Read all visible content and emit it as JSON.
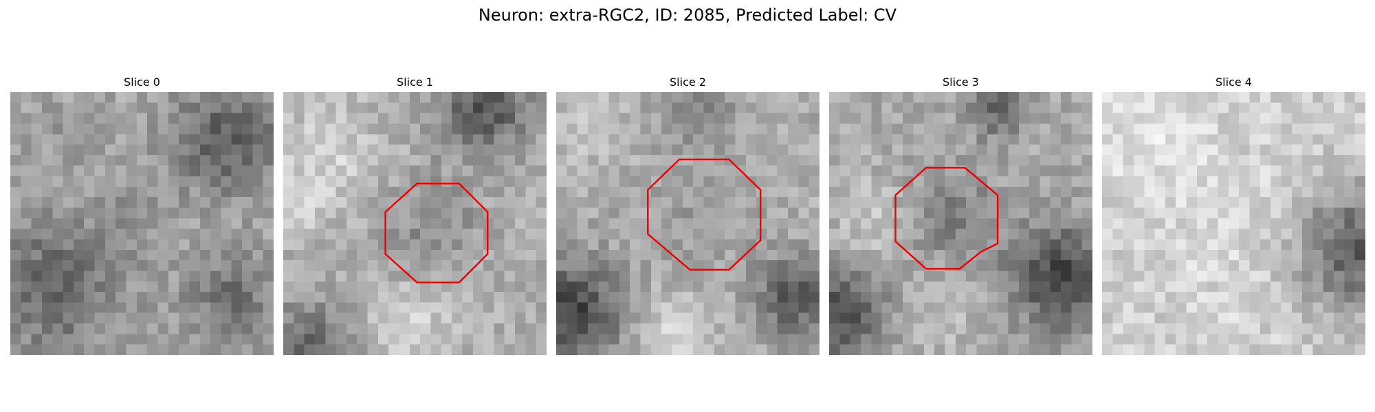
{
  "title": "Neuron: extra-RGC2, ID: 2085, Predicted Label: CV",
  "colors": {
    "contour": "#ee0000",
    "background": "#ffffff"
  },
  "colormap": "gray",
  "panels": [
    {
      "title": "Slice 0",
      "has_contour": false
    },
    {
      "title": "Slice 1",
      "has_contour": true
    },
    {
      "title": "Slice 2",
      "has_contour": true
    },
    {
      "title": "Slice 3",
      "has_contour": true
    },
    {
      "title": "Slice 4",
      "has_contour": false
    }
  ]
}
